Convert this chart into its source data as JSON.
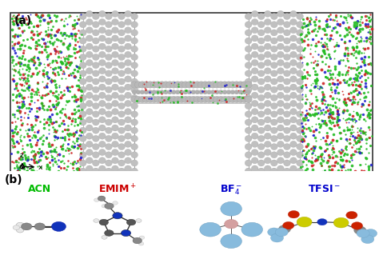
{
  "panel_a_label": "(a)",
  "panel_b_label": "(b)",
  "molecules": [
    "ACN",
    "EMIM⁺",
    "BF₄⁻",
    "TFSI⁻"
  ],
  "molecule_colors": [
    "#00bb00",
    "#cc0000",
    "#0000cc",
    "#0000cc"
  ],
  "bg_color": "#ffffff",
  "acn_label_color": "#00bb00",
  "emim_label_color": "#cc0000",
  "bf4_label_color": "#0000cc",
  "tfsi_label_color": "#0000cc",
  "box_color": "#333333",
  "electrode_atom_color": "#c0c0c0",
  "electrode_atom_edge": "#a0a0a0",
  "tube_color": "#b8b8b8",
  "mol_green": "#22bb22",
  "mol_red": "#cc2222",
  "mol_blue": "#2222cc",
  "atom_gray": "#888888",
  "atom_lightgray": "#cccccc",
  "atom_darkgray": "#555555",
  "atom_blue_dark": "#1133bb",
  "atom_blue_light": "#88bbdd",
  "atom_pink": "#d4a0a0",
  "atom_red": "#cc2200",
  "atom_yellow": "#cccc00",
  "atom_white": "#e8e8e8"
}
